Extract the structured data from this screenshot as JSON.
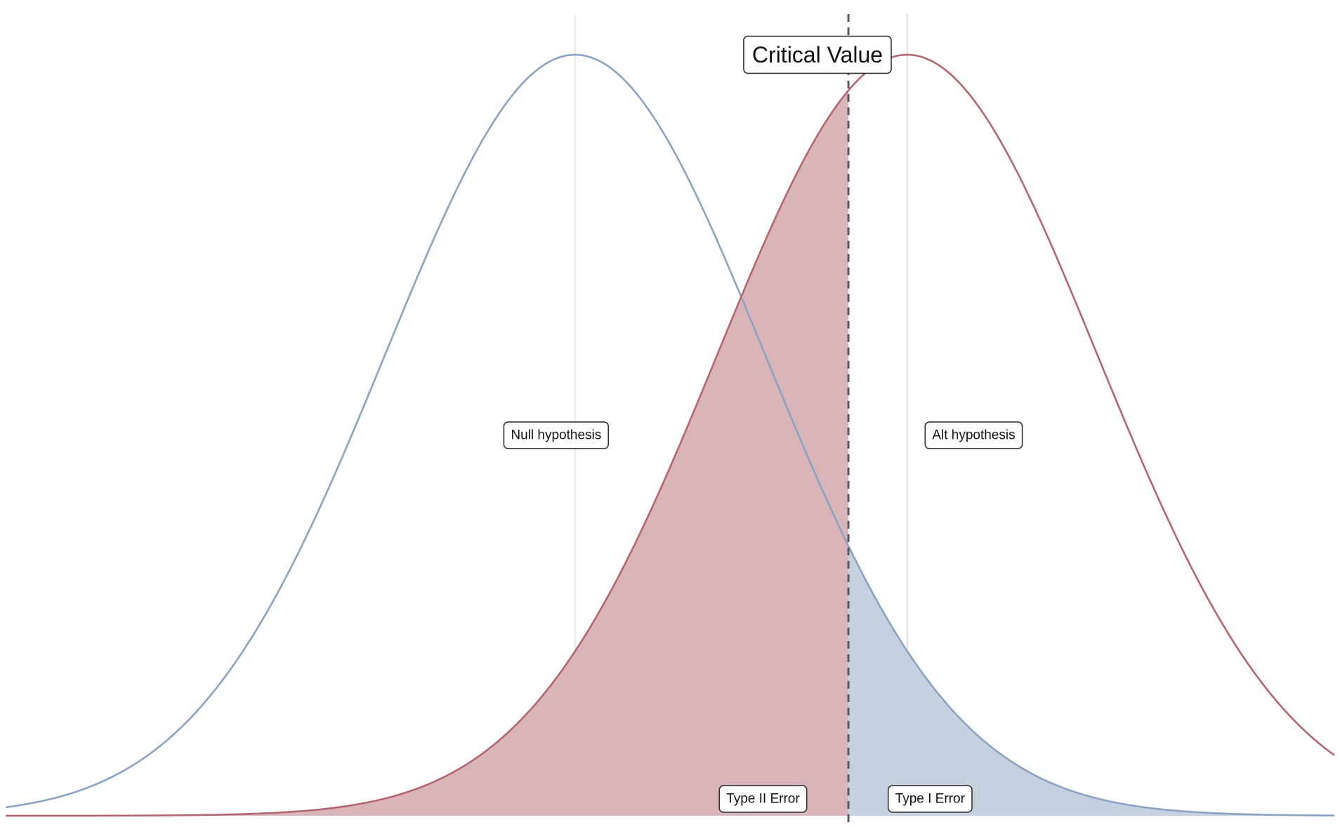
{
  "chart_data": {
    "type": "area",
    "title": "",
    "xlabel": "",
    "ylabel": "",
    "xlim": [
      -3.0,
      4.0
    ],
    "ylim": [
      0,
      0.42
    ],
    "grid": false,
    "critical_value": 1.44,
    "critical_label": "Critical Value",
    "series": [
      {
        "name": "",
        "mean": 0,
        "sd": 1,
        "color": "#8ba2c2",
        "fill": "#c6d1e0",
        "shade_side": "right"
      },
      {
        "name": "",
        "mean": 1.75,
        "sd": 1,
        "color": "#b36670",
        "fill": "#d9b5ba",
        "shade_side": "left"
      }
    ],
    "annotations": [
      {
        "id": "null",
        "text": "Null hypothesis",
        "x": -0.1,
        "y": 0.2
      },
      {
        "id": "alt",
        "text": "Alt hypothesis",
        "x": 2.1,
        "y": 0.2
      },
      {
        "id": "type2",
        "text": "Type II Error",
        "x": 0.99,
        "y": 0.01
      },
      {
        "id": "type1",
        "text": "Type I Error",
        "x": 1.87,
        "y": 0.01
      }
    ]
  }
}
